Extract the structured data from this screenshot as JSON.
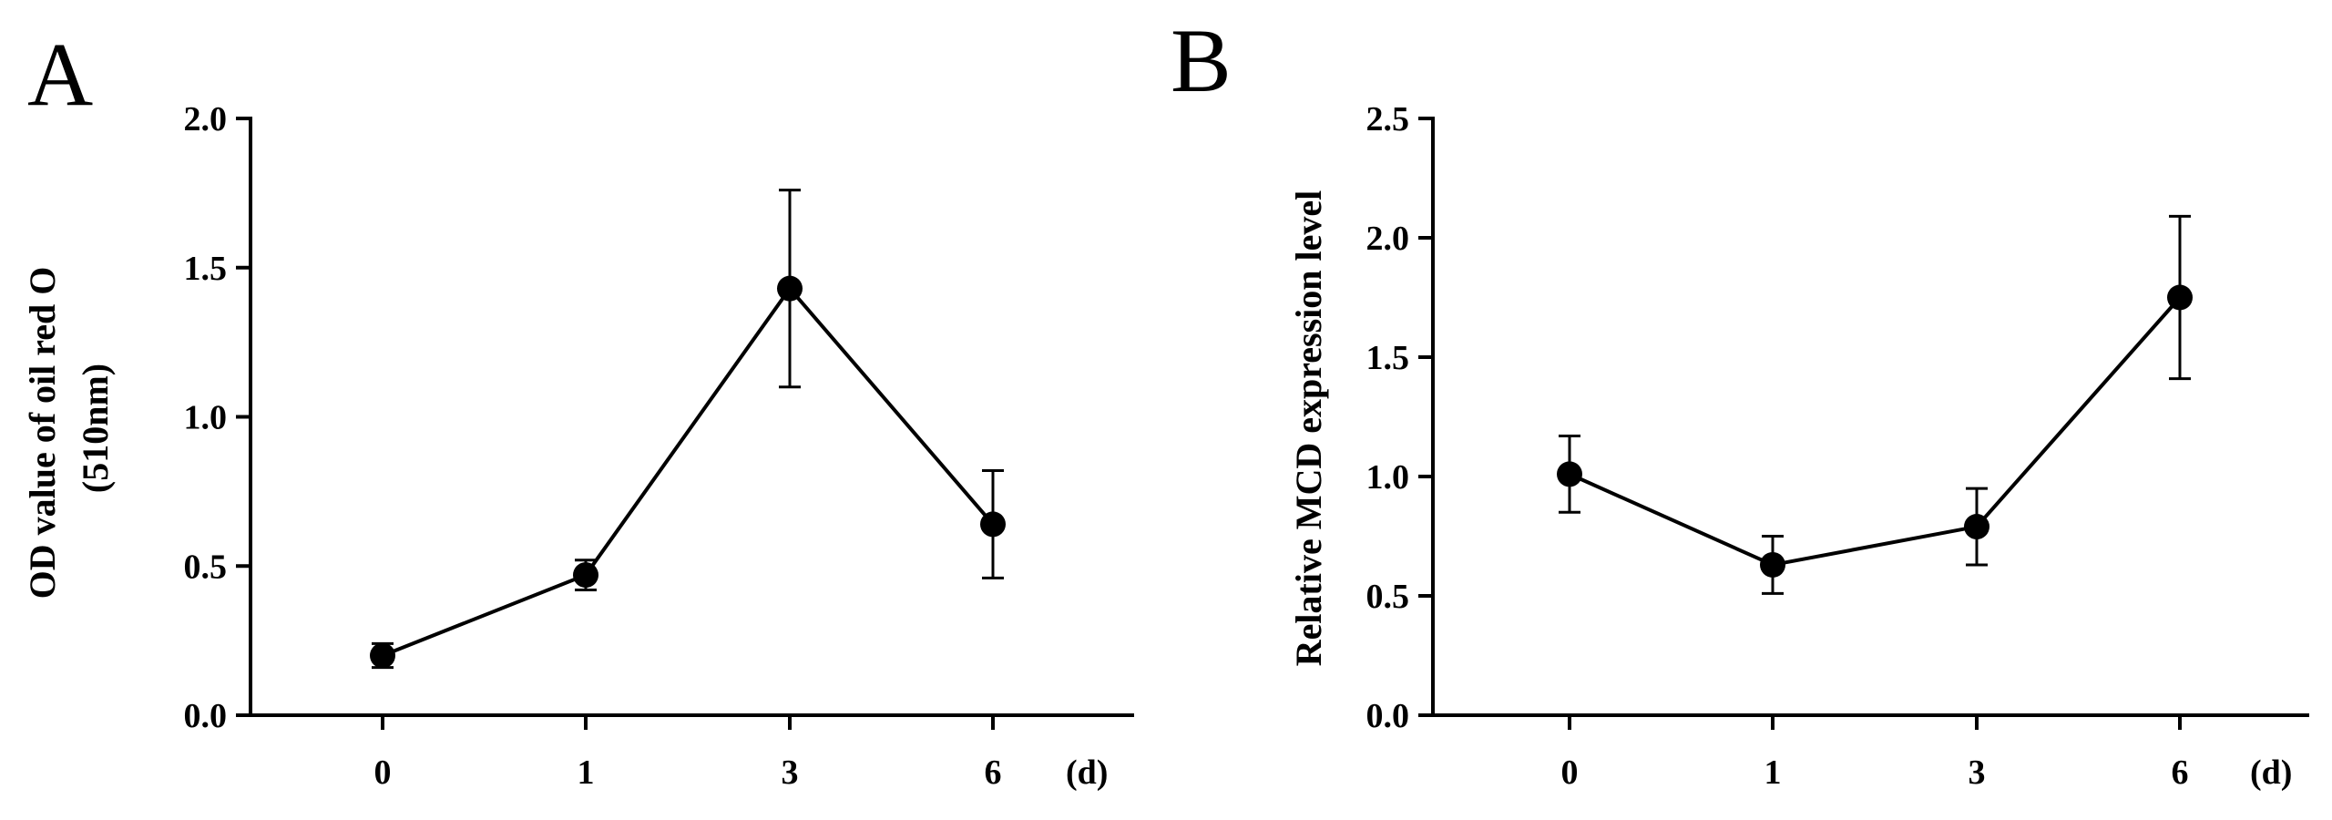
{
  "chart_data": [
    {
      "type": "line",
      "panel_label": "A",
      "ylabel_lines": [
        "OD value of oil red O",
        "(510nm)"
      ],
      "x_unit": "(d)",
      "categories": [
        "0",
        "1",
        "3",
        "6"
      ],
      "y_ticks": [
        "0.0",
        "0.5",
        "1.0",
        "1.5",
        "2.0"
      ],
      "ylim": [
        0,
        2.0
      ],
      "series": [
        {
          "values": [
            0.2,
            0.47,
            1.43,
            0.64
          ],
          "errors": [
            0.04,
            0.05,
            0.33,
            0.18
          ]
        }
      ],
      "grid": false,
      "marker": "filled-circle",
      "color": "#000000"
    },
    {
      "type": "line",
      "panel_label": "B",
      "ylabel_lines": [
        "Relative MCD  expression level"
      ],
      "x_unit": "(d)",
      "categories": [
        "0",
        "1",
        "3",
        "6"
      ],
      "y_ticks": [
        "0.0",
        "0.5",
        "1.0",
        "1.5",
        "2.0",
        "2.5"
      ],
      "ylim": [
        0,
        2.5
      ],
      "series": [
        {
          "values": [
            1.01,
            0.63,
            0.79,
            1.75
          ],
          "errors": [
            0.16,
            0.12,
            0.16,
            0.34
          ]
        }
      ],
      "grid": false,
      "marker": "filled-circle",
      "color": "#000000"
    }
  ]
}
